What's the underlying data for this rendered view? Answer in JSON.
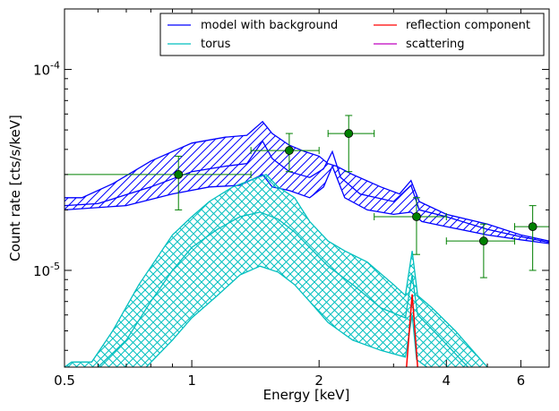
{
  "chart_data": {
    "type": "line",
    "xlabel": "Energy [keV]",
    "ylabel": "Count rate [cts/s/keV]",
    "x_scale": "log",
    "y_scale": "log",
    "xlim": [
      0.5,
      7.0
    ],
    "ylim": [
      3.3e-06,
      0.0002
    ],
    "x_ticks": [
      {
        "value": 0.5,
        "label": "0.5"
      },
      {
        "value": 1,
        "label": "1"
      },
      {
        "value": 2,
        "label": "2"
      },
      {
        "value": 4,
        "label": "4"
      },
      {
        "value": 6,
        "label": "6"
      }
    ],
    "y_ticks": [
      {
        "value": 1e-05,
        "label_base": "10",
        "label_exp": "-5"
      },
      {
        "value": 0.0001,
        "label_base": "10",
        "label_exp": "-4"
      }
    ],
    "grid": false,
    "legend": {
      "placement": "top-right",
      "entries": [
        {
          "label": "model with background",
          "color": "#0000ff"
        },
        {
          "label": "torus",
          "color": "#00bfbf"
        },
        {
          "label": "reflection component",
          "color": "#ff0000"
        },
        {
          "label": "scattering",
          "color": "#bf00bf"
        }
      ]
    },
    "series": [
      {
        "name": "model with background",
        "color": "#0000ff",
        "hatch": "diagonal",
        "upper": [
          [
            0.5,
            2.3e-05
          ],
          [
            0.55,
            2.3e-05
          ],
          [
            0.65,
            2.7e-05
          ],
          [
            0.8,
            3.5e-05
          ],
          [
            1.0,
            4.3e-05
          ],
          [
            1.2,
            4.6e-05
          ],
          [
            1.35,
            4.7e-05
          ],
          [
            1.47,
            5.5e-05
          ],
          [
            1.55,
            4.8e-05
          ],
          [
            1.7,
            4.2e-05
          ],
          [
            1.85,
            3.9e-05
          ],
          [
            2.0,
            3.7e-05
          ],
          [
            2.1,
            3.4e-05
          ],
          [
            2.2,
            3.3e-05
          ],
          [
            2.4,
            3e-05
          ],
          [
            2.8,
            2.6e-05
          ],
          [
            3.1,
            2.4e-05
          ],
          [
            3.3,
            2.8e-05
          ],
          [
            3.45,
            2.2e-05
          ],
          [
            4.0,
            1.9e-05
          ],
          [
            5.0,
            1.7e-05
          ],
          [
            6.0,
            1.5e-05
          ],
          [
            7.0,
            1.4e-05
          ]
        ],
        "mid": [
          [
            0.5,
            2.1e-05
          ],
          [
            0.6,
            2.15e-05
          ],
          [
            0.8,
            2.6e-05
          ],
          [
            1.0,
            3.1e-05
          ],
          [
            1.2,
            3.3e-05
          ],
          [
            1.35,
            3.4e-05
          ],
          [
            1.47,
            4.4e-05
          ],
          [
            1.55,
            3.6e-05
          ],
          [
            1.7,
            3.1e-05
          ],
          [
            1.9,
            2.9e-05
          ],
          [
            2.05,
            3.2e-05
          ],
          [
            2.15,
            3.9e-05
          ],
          [
            2.25,
            2.9e-05
          ],
          [
            2.5,
            2.4e-05
          ],
          [
            3.0,
            2.2e-05
          ],
          [
            3.3,
            2.65e-05
          ],
          [
            3.45,
            2e-05
          ],
          [
            4.0,
            1.85e-05
          ],
          [
            5.0,
            1.6e-05
          ],
          [
            6.0,
            1.47e-05
          ],
          [
            7.0,
            1.38e-05
          ]
        ],
        "lower": [
          [
            0.5,
            2e-05
          ],
          [
            0.7,
            2.1e-05
          ],
          [
            0.9,
            2.4e-05
          ],
          [
            1.1,
            2.6e-05
          ],
          [
            1.3,
            2.65e-05
          ],
          [
            1.47,
            3e-05
          ],
          [
            1.55,
            2.6e-05
          ],
          [
            1.7,
            2.5e-05
          ],
          [
            1.9,
            2.3e-05
          ],
          [
            2.05,
            2.6e-05
          ],
          [
            2.15,
            3.3e-05
          ],
          [
            2.3,
            2.3e-05
          ],
          [
            2.6,
            2e-05
          ],
          [
            3.0,
            1.9e-05
          ],
          [
            3.3,
            1.95e-05
          ],
          [
            3.5,
            1.75e-05
          ],
          [
            4.0,
            1.65e-05
          ],
          [
            5.0,
            1.5e-05
          ],
          [
            6.0,
            1.42e-05
          ],
          [
            7.0,
            1.36e-05
          ]
        ]
      },
      {
        "name": "torus",
        "color": "#00bfbf",
        "hatch": "crosshatch",
        "upper": [
          [
            0.5,
            3.3e-06
          ],
          [
            0.52,
            3.5e-06
          ],
          [
            0.58,
            3.5e-06
          ],
          [
            0.65,
            5e-06
          ],
          [
            0.75,
            8.5e-06
          ],
          [
            0.9,
            1.5e-05
          ],
          [
            1.0,
            1.85e-05
          ],
          [
            1.1,
            2.2e-05
          ],
          [
            1.25,
            2.6e-05
          ],
          [
            1.4,
            2.85e-05
          ],
          [
            1.5,
            3e-05
          ],
          [
            1.6,
            2.6e-05
          ],
          [
            1.75,
            2.3e-05
          ],
          [
            1.9,
            1.75e-05
          ],
          [
            2.1,
            1.4e-05
          ],
          [
            2.3,
            1.25e-05
          ],
          [
            2.6,
            1.1e-05
          ],
          [
            3.0,
            8.5e-06
          ],
          [
            3.2,
            7.5e-06
          ],
          [
            3.32,
            1.25e-05
          ],
          [
            3.42,
            7.5e-06
          ],
          [
            3.7,
            6.5e-06
          ],
          [
            4.2,
            5e-06
          ],
          [
            5.0,
            3.3e-06
          ]
        ],
        "mid": [
          [
            0.6,
            3.3e-06
          ],
          [
            0.7,
            4.5e-06
          ],
          [
            0.8,
            7e-06
          ],
          [
            0.9,
            1e-05
          ],
          [
            1.0,
            1.3e-05
          ],
          [
            1.15,
            1.6e-05
          ],
          [
            1.3,
            1.85e-05
          ],
          [
            1.45,
            1.95e-05
          ],
          [
            1.6,
            1.8e-05
          ],
          [
            1.75,
            1.55e-05
          ],
          [
            1.9,
            1.3e-05
          ],
          [
            2.1,
            1.05e-05
          ],
          [
            2.4,
            8.5e-06
          ],
          [
            2.8,
            6.5e-06
          ],
          [
            3.2,
            5.8e-06
          ],
          [
            3.32,
            9.5e-06
          ],
          [
            3.42,
            6e-06
          ],
          [
            3.8,
            4.8e-06
          ],
          [
            4.5,
            3.3e-06
          ]
        ],
        "lower": [
          [
            0.78,
            3.3e-06
          ],
          [
            0.9,
            4.5e-06
          ],
          [
            1.0,
            5.8e-06
          ],
          [
            1.15,
            7.5e-06
          ],
          [
            1.3,
            9.5e-06
          ],
          [
            1.45,
            1.05e-05
          ],
          [
            1.6,
            9.8e-06
          ],
          [
            1.75,
            8.5e-06
          ],
          [
            1.9,
            7e-06
          ],
          [
            2.1,
            5.5e-06
          ],
          [
            2.4,
            4.5e-06
          ],
          [
            2.8,
            4e-06
          ],
          [
            3.2,
            3.7e-06
          ],
          [
            3.32,
            6e-06
          ],
          [
            3.4,
            3.6e-06
          ],
          [
            3.6,
            3.3e-06
          ]
        ]
      },
      {
        "name": "reflection component",
        "color": "#ff0000",
        "curve": [
          [
            3.22,
            3.3e-06
          ],
          [
            3.28,
            5.5e-06
          ],
          [
            3.32,
            7.6e-06
          ],
          [
            3.36,
            5.5e-06
          ],
          [
            3.42,
            3.3e-06
          ]
        ]
      },
      {
        "name": "scattering",
        "color": "#bf00bf",
        "curve": []
      }
    ],
    "data_points": {
      "color": "#008000",
      "points": [
        {
          "x": 0.93,
          "y": 3e-05,
          "xerr": [
            0.5,
            1.38
          ],
          "yerr": [
            2e-05,
            3.7e-05
          ]
        },
        {
          "x": 1.7,
          "y": 3.95e-05,
          "xerr": [
            1.38,
            2.0
          ],
          "yerr": [
            3.1e-05,
            4.8e-05
          ]
        },
        {
          "x": 2.35,
          "y": 4.8e-05,
          "xerr": [
            2.1,
            2.7
          ],
          "yerr": [
            3.1e-05,
            5.9e-05
          ]
        },
        {
          "x": 3.4,
          "y": 1.85e-05,
          "xerr": [
            2.7,
            4.0
          ],
          "yerr": [
            1.2e-05,
            2.3e-05
          ]
        },
        {
          "x": 4.9,
          "y": 1.4e-05,
          "xerr": [
            4.0,
            5.8
          ],
          "yerr": [
            9.2e-06,
            1.7e-05
          ]
        },
        {
          "x": 6.4,
          "y": 1.65e-05,
          "xerr": [
            5.8,
            7.0
          ],
          "yerr": [
            1e-05,
            2.1e-05
          ]
        }
      ]
    }
  }
}
